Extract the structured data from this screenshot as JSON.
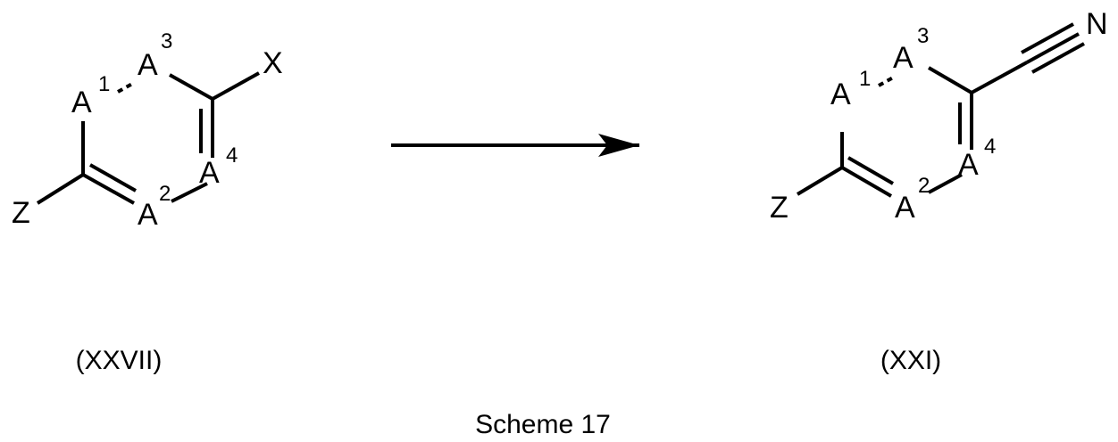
{
  "reactant": {
    "atoms": {
      "a1": "A",
      "a2": "A",
      "a3": "A",
      "a4": "A",
      "x": "X",
      "z": "Z"
    },
    "locants": {
      "a1": "1",
      "a2": "2",
      "a3": "3",
      "a4": "4"
    },
    "compound_label": "(XXVII)"
  },
  "product": {
    "atoms": {
      "a1": "A",
      "a2": "A",
      "a3": "A",
      "a4": "A",
      "n": "N",
      "z": "Z"
    },
    "locants": {
      "a1": "1",
      "a2": "2",
      "a3": "3",
      "a4": "4"
    },
    "compound_label": "(XXI)"
  },
  "caption": "Scheme 17"
}
